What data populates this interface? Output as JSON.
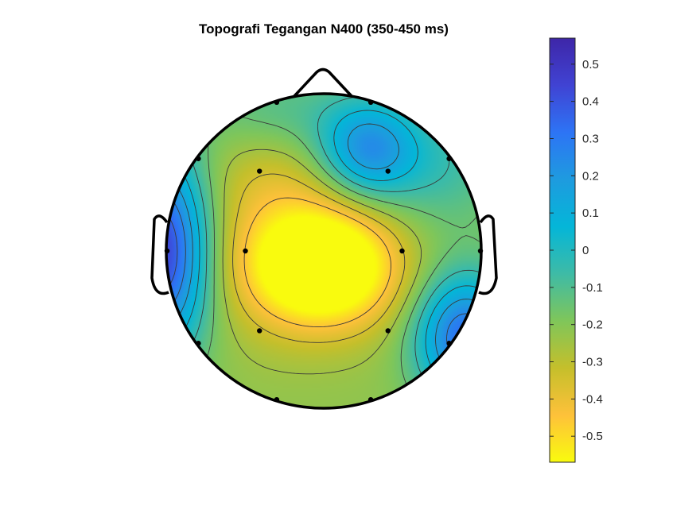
{
  "chart_data": {
    "type": "heatmap",
    "title": "Topografi Tegangan N400 (350-450 ms)",
    "colorbar": {
      "colormap": "parula",
      "reversed": true,
      "limits": [
        -0.57,
        0.57
      ],
      "ticks": [
        {
          "value": 0.5,
          "label": "0.5"
        },
        {
          "value": 0.4,
          "label": "0.4"
        },
        {
          "value": 0.3,
          "label": "0.3"
        },
        {
          "value": 0.2,
          "label": "0.2"
        },
        {
          "value": 0.1,
          "label": "0.1"
        },
        {
          "value": 0,
          "label": "0"
        },
        {
          "value": -0.1,
          "label": "-0.1"
        },
        {
          "value": -0.2,
          "label": "-0.2"
        },
        {
          "value": -0.3,
          "label": "-0.3"
        },
        {
          "value": -0.4,
          "label": "-0.4"
        },
        {
          "value": -0.5,
          "label": "-0.5"
        }
      ],
      "colors": [
        "#f9fb0e",
        "#fec13a",
        "#c5bf2b",
        "#7fc65a",
        "#3ebba6",
        "#04b6d8",
        "#1e9bdf",
        "#2d74f5",
        "#4043d3",
        "#3e26a8"
      ]
    },
    "electrodes": [
      {
        "x": -0.3,
        "y": 0.95,
        "v": 0.0
      },
      {
        "x": 0.3,
        "y": 0.95,
        "v": 0.0
      },
      {
        "x": -0.8,
        "y": 0.59,
        "v": -0.18
      },
      {
        "x": -0.41,
        "y": 0.51,
        "v": -0.35
      },
      {
        "x": 0.41,
        "y": 0.51,
        "v": 0.03
      },
      {
        "x": 0.8,
        "y": 0.59,
        "v": -0.1
      },
      {
        "x": -1.0,
        "y": 0.0,
        "v": 0.25
      },
      {
        "x": -0.5,
        "y": 0.0,
        "v": -0.42
      },
      {
        "x": 0.5,
        "y": 0.0,
        "v": -0.38
      },
      {
        "x": 1.0,
        "y": 0.0,
        "v": -0.1
      },
      {
        "x": -0.8,
        "y": -0.59,
        "v": -0.12
      },
      {
        "x": -0.41,
        "y": -0.51,
        "v": -0.35
      },
      {
        "x": 0.41,
        "y": -0.51,
        "v": -0.35
      },
      {
        "x": 0.8,
        "y": -0.59,
        "v": 0.15
      },
      {
        "x": -0.3,
        "y": -0.95,
        "v": -0.08
      },
      {
        "x": 0.3,
        "y": -0.95,
        "v": -0.05
      }
    ],
    "value_field": [
      {
        "x": 0.0,
        "y": -0.1,
        "amp": -0.58,
        "sx": 0.33,
        "sy": 0.27
      },
      {
        "x": -0.4,
        "y": 0.15,
        "amp": -0.1,
        "sx": 0.35,
        "sy": 0.45
      },
      {
        "x": -0.3,
        "y": 0.45,
        "amp": -0.05,
        "sx": 0.3,
        "sy": 0.2
      },
      {
        "x": 0.28,
        "y": 0.65,
        "amp": 0.42,
        "sx": 0.22,
        "sy": 0.22
      },
      {
        "x": -1.05,
        "y": 0.0,
        "amp": 0.7,
        "sx": 0.22,
        "sy": 0.45
      },
      {
        "x": 0.9,
        "y": -0.55,
        "amp": 0.55,
        "sx": 0.22,
        "sy": 0.28
      },
      {
        "x": 0.75,
        "y": 0.55,
        "amp": 0.15,
        "sx": 0.3,
        "sy": 0.3
      },
      {
        "x": -0.3,
        "y": 0.9,
        "amp": 0.12,
        "sx": 0.35,
        "sy": 0.2
      }
    ],
    "field_baseline": -0.22,
    "contour_levels": [
      -0.45,
      -0.35,
      -0.25,
      -0.15,
      -0.05,
      0.05,
      0.15,
      0.25,
      0.35
    ],
    "grid": false,
    "legend": "none"
  }
}
